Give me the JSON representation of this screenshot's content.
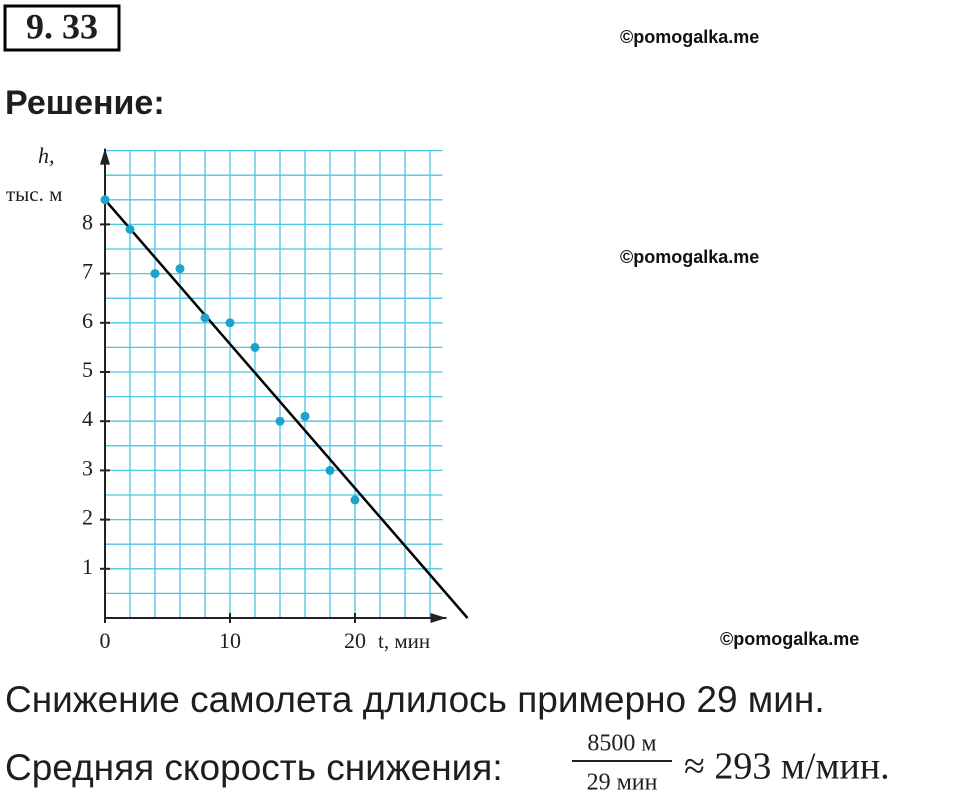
{
  "header": {
    "problem_number": "9. 33",
    "solution_label": "Решение:"
  },
  "watermarks": [
    "©pomogalka.me",
    "©pomogalka.me",
    "©pomogalka.me"
  ],
  "chart_data": {
    "type": "scatter",
    "y_label": "h,",
    "y_unit": "тыс. м",
    "x_label": "t, мин",
    "x": [
      0,
      2,
      4,
      6,
      8,
      10,
      12,
      14,
      16,
      18,
      20
    ],
    "values": [
      8.5,
      7.9,
      7,
      7.1,
      6.1,
      6,
      5.5,
      4,
      4.1,
      3,
      2.4
    ],
    "color": "#1ca3cc",
    "fit_line": {
      "x": [
        0,
        29
      ],
      "values": [
        8.5,
        0
      ],
      "color": "#000000"
    },
    "xlim": [
      0,
      27
    ],
    "ylim": [
      0,
      9.5
    ],
    "xticks": [
      0,
      10,
      20
    ],
    "yticks": [
      1,
      2,
      3,
      4,
      5,
      6,
      7,
      8
    ],
    "grid": {
      "x_step": 2,
      "y_step": 0.5,
      "color": "#4fc3e4"
    }
  },
  "text": {
    "line1": "Снижение самолета длилось примерно 29 мин.",
    "line2_prefix": "Средняя скорость снижения:",
    "fraction_numerator": "8500 м",
    "fraction_denominator": "29 мин",
    "line2_suffix": "≈ 293 м/мин."
  }
}
